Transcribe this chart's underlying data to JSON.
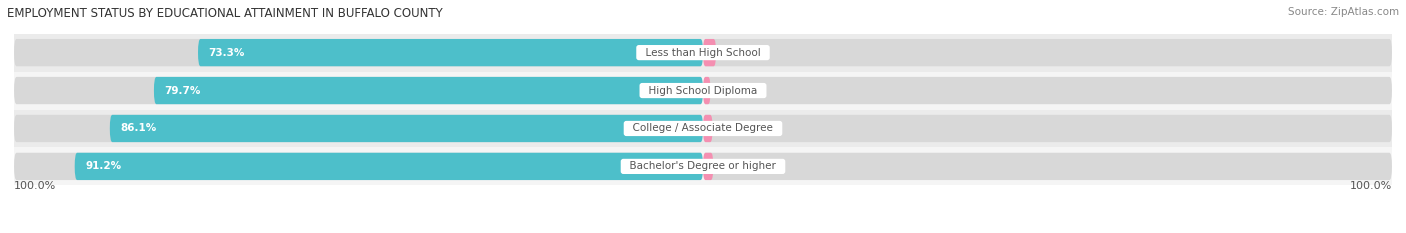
{
  "title": "EMPLOYMENT STATUS BY EDUCATIONAL ATTAINMENT IN BUFFALO COUNTY",
  "source": "Source: ZipAtlas.com",
  "categories": [
    "Less than High School",
    "High School Diploma",
    "College / Associate Degree",
    "Bachelor's Degree or higher"
  ],
  "labor_force": [
    73.3,
    79.7,
    86.1,
    91.2
  ],
  "unemployed": [
    1.9,
    1.1,
    1.4,
    1.5
  ],
  "labor_force_color": "#4dbfca",
  "unemployed_color": "#f48fb1",
  "row_bg_colors": [
    "#ebebeb",
    "#f5f5f5",
    "#ebebeb",
    "#f5f5f5"
  ],
  "bar_bg_color": "#d8d8d8",
  "label_text_color": "#555555",
  "value_left_color": "#ffffff",
  "value_right_color": "#666666",
  "title_fontsize": 8.5,
  "source_fontsize": 7.5,
  "bar_label_fontsize": 7.5,
  "category_fontsize": 7.5,
  "axis_fontsize": 8,
  "legend_fontsize": 8,
  "bar_height": 0.72,
  "max_val": 100.0,
  "axis_label_left": "100.0%",
  "axis_label_right": "100.0%"
}
